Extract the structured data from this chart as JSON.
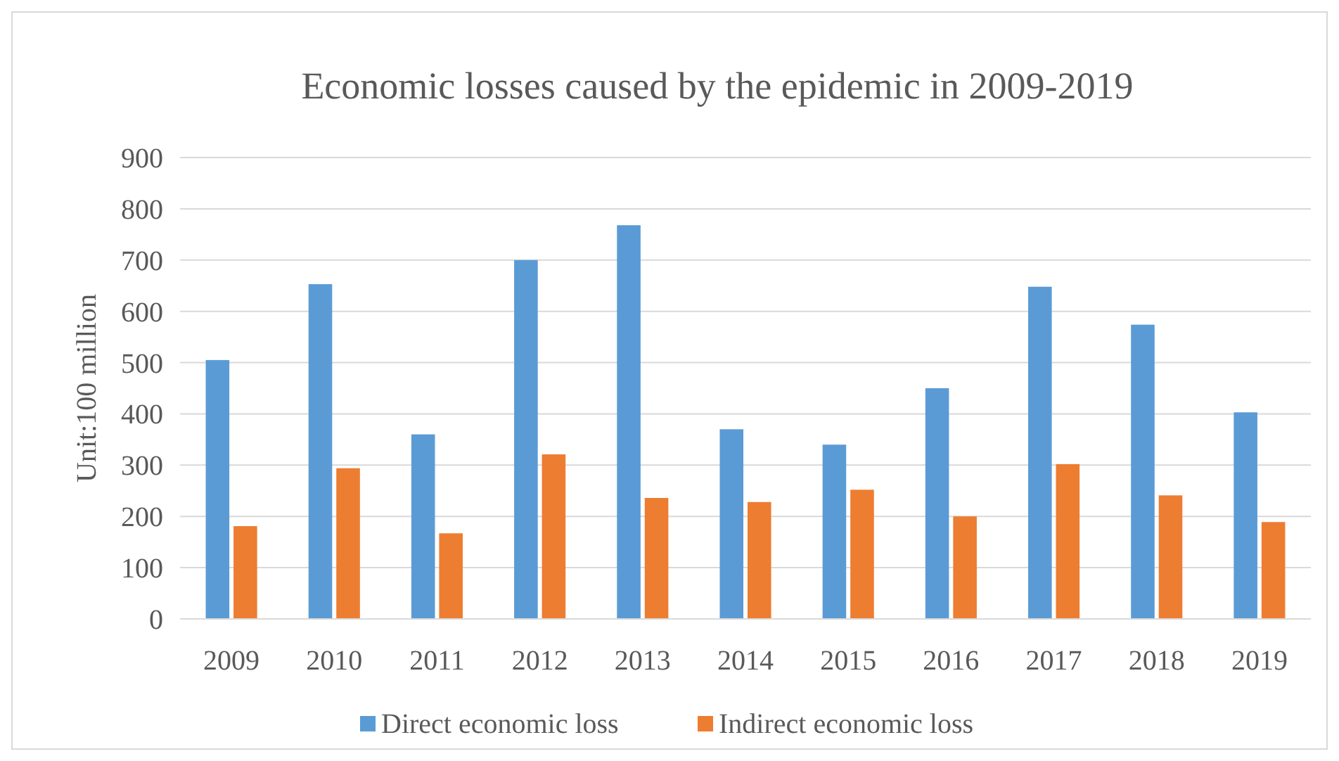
{
  "chart_data": {
    "type": "bar",
    "title": "Economic losses caused by the epidemic in 2009-2019",
    "ylabel": "Unit:100 million",
    "categories": [
      "2009",
      "2010",
      "2011",
      "2012",
      "2013",
      "2014",
      "2015",
      "2016",
      "2017",
      "2018",
      "2019"
    ],
    "series": [
      {
        "name": "Direct economic loss",
        "color": "#5b9bd5",
        "values": [
          505,
          653,
          360,
          700,
          768,
          370,
          340,
          450,
          648,
          574,
          403
        ]
      },
      {
        "name": "Indirect economic loss",
        "color": "#ed7d31",
        "values": [
          181,
          294,
          167,
          321,
          236,
          228,
          252,
          200,
          302,
          241,
          189
        ]
      }
    ],
    "ylim": [
      0,
      900
    ],
    "yticks": [
      0,
      100,
      200,
      300,
      400,
      500,
      600,
      700,
      800,
      900
    ],
    "grid": "y",
    "legend": "bottom"
  }
}
